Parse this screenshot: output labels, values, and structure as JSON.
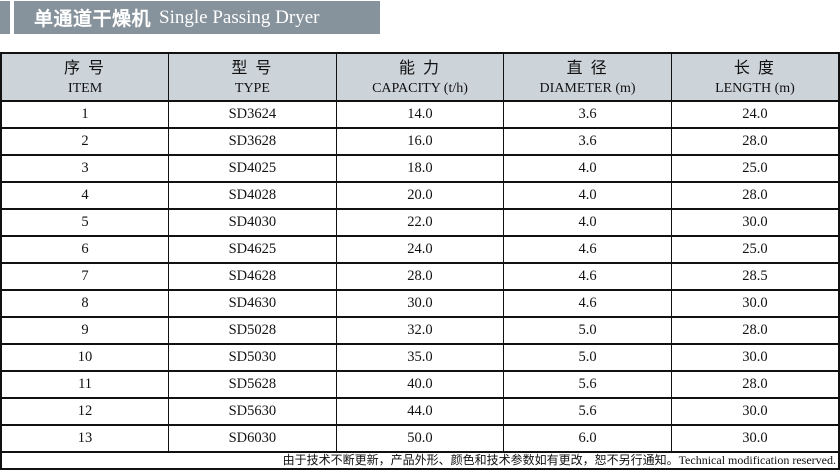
{
  "title": {
    "cn": "单通道干燥机",
    "en": "Single Passing Dryer"
  },
  "table": {
    "columns": [
      {
        "cn": "序 号",
        "en": "ITEM"
      },
      {
        "cn": "型 号",
        "en": "TYPE"
      },
      {
        "cn": "能 力",
        "en": "CAPACITY (t/h)"
      },
      {
        "cn": "直 径",
        "en": "DIAMETER (m)"
      },
      {
        "cn": "长 度",
        "en": "LENGTH (m)"
      }
    ],
    "rows": [
      [
        "1",
        "SD3624",
        "14.0",
        "3.6",
        "24.0"
      ],
      [
        "2",
        "SD3628",
        "16.0",
        "3.6",
        "28.0"
      ],
      [
        "3",
        "SD4025",
        "18.0",
        "4.0",
        "25.0"
      ],
      [
        "4",
        "SD4028",
        "20.0",
        "4.0",
        "28.0"
      ],
      [
        "5",
        "SD4030",
        "22.0",
        "4.0",
        "30.0"
      ],
      [
        "6",
        "SD4625",
        "24.0",
        "4.6",
        "25.0"
      ],
      [
        "7",
        "SD4628",
        "28.0",
        "4.6",
        "28.5"
      ],
      [
        "8",
        "SD4630",
        "30.0",
        "4.6",
        "30.0"
      ],
      [
        "9",
        "SD5028",
        "32.0",
        "5.0",
        "28.0"
      ],
      [
        "10",
        "SD5030",
        "35.0",
        "5.0",
        "30.0"
      ],
      [
        "11",
        "SD5628",
        "40.0",
        "5.6",
        "28.0"
      ],
      [
        "12",
        "SD5630",
        "44.0",
        "5.6",
        "30.0"
      ],
      [
        "13",
        "SD6030",
        "50.0",
        "6.0",
        "30.0"
      ]
    ],
    "footnote": "由于技术不断更新，产品外形、颜色和技术参数如有更改，恕不另行通知。Technical modification reserved."
  },
  "colors": {
    "title_bar_bg": "#86929c",
    "header_bg": "#ccd3d9",
    "border": "#111111",
    "text": "#111111",
    "title_text": "#ffffff"
  }
}
